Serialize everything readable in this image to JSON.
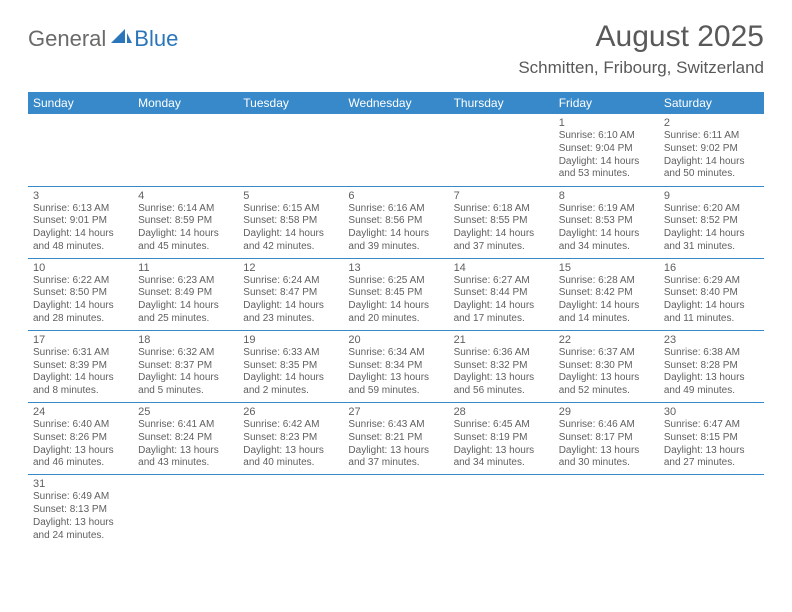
{
  "logo": {
    "part1": "General",
    "part2": "Blue"
  },
  "title": "August 2025",
  "location": "Schmitten, Fribourg, Switzerland",
  "colors": {
    "header_bg": "#3789ca",
    "header_fg": "#ffffff",
    "text": "#606060",
    "title_text": "#595959",
    "rule": "#3789ca",
    "logo_gray": "#6a6a6a",
    "logo_blue": "#2b76bb",
    "background": "#ffffff"
  },
  "typography": {
    "title_fontsize": 30,
    "location_fontsize": 17,
    "weekday_fontsize": 12,
    "daynum_fontsize": 11,
    "info_fontsize": 10
  },
  "weekdays": [
    "Sunday",
    "Monday",
    "Tuesday",
    "Wednesday",
    "Thursday",
    "Friday",
    "Saturday"
  ],
  "weeks": [
    [
      null,
      null,
      null,
      null,
      null,
      {
        "n": "1",
        "sunrise": "6:10 AM",
        "sunset": "9:04 PM",
        "day_h": "14",
        "day_m": "53"
      },
      {
        "n": "2",
        "sunrise": "6:11 AM",
        "sunset": "9:02 PM",
        "day_h": "14",
        "day_m": "50"
      }
    ],
    [
      {
        "n": "3",
        "sunrise": "6:13 AM",
        "sunset": "9:01 PM",
        "day_h": "14",
        "day_m": "48"
      },
      {
        "n": "4",
        "sunrise": "6:14 AM",
        "sunset": "8:59 PM",
        "day_h": "14",
        "day_m": "45"
      },
      {
        "n": "5",
        "sunrise": "6:15 AM",
        "sunset": "8:58 PM",
        "day_h": "14",
        "day_m": "42"
      },
      {
        "n": "6",
        "sunrise": "6:16 AM",
        "sunset": "8:56 PM",
        "day_h": "14",
        "day_m": "39"
      },
      {
        "n": "7",
        "sunrise": "6:18 AM",
        "sunset": "8:55 PM",
        "day_h": "14",
        "day_m": "37"
      },
      {
        "n": "8",
        "sunrise": "6:19 AM",
        "sunset": "8:53 PM",
        "day_h": "14",
        "day_m": "34"
      },
      {
        "n": "9",
        "sunrise": "6:20 AM",
        "sunset": "8:52 PM",
        "day_h": "14",
        "day_m": "31"
      }
    ],
    [
      {
        "n": "10",
        "sunrise": "6:22 AM",
        "sunset": "8:50 PM",
        "day_h": "14",
        "day_m": "28"
      },
      {
        "n": "11",
        "sunrise": "6:23 AM",
        "sunset": "8:49 PM",
        "day_h": "14",
        "day_m": "25"
      },
      {
        "n": "12",
        "sunrise": "6:24 AM",
        "sunset": "8:47 PM",
        "day_h": "14",
        "day_m": "23"
      },
      {
        "n": "13",
        "sunrise": "6:25 AM",
        "sunset": "8:45 PM",
        "day_h": "14",
        "day_m": "20"
      },
      {
        "n": "14",
        "sunrise": "6:27 AM",
        "sunset": "8:44 PM",
        "day_h": "14",
        "day_m": "17"
      },
      {
        "n": "15",
        "sunrise": "6:28 AM",
        "sunset": "8:42 PM",
        "day_h": "14",
        "day_m": "14"
      },
      {
        "n": "16",
        "sunrise": "6:29 AM",
        "sunset": "8:40 PM",
        "day_h": "14",
        "day_m": "11"
      }
    ],
    [
      {
        "n": "17",
        "sunrise": "6:31 AM",
        "sunset": "8:39 PM",
        "day_h": "14",
        "day_m": "8"
      },
      {
        "n": "18",
        "sunrise": "6:32 AM",
        "sunset": "8:37 PM",
        "day_h": "14",
        "day_m": "5"
      },
      {
        "n": "19",
        "sunrise": "6:33 AM",
        "sunset": "8:35 PM",
        "day_h": "14",
        "day_m": "2"
      },
      {
        "n": "20",
        "sunrise": "6:34 AM",
        "sunset": "8:34 PM",
        "day_h": "13",
        "day_m": "59"
      },
      {
        "n": "21",
        "sunrise": "6:36 AM",
        "sunset": "8:32 PM",
        "day_h": "13",
        "day_m": "56"
      },
      {
        "n": "22",
        "sunrise": "6:37 AM",
        "sunset": "8:30 PM",
        "day_h": "13",
        "day_m": "52"
      },
      {
        "n": "23",
        "sunrise": "6:38 AM",
        "sunset": "8:28 PM",
        "day_h": "13",
        "day_m": "49"
      }
    ],
    [
      {
        "n": "24",
        "sunrise": "6:40 AM",
        "sunset": "8:26 PM",
        "day_h": "13",
        "day_m": "46"
      },
      {
        "n": "25",
        "sunrise": "6:41 AM",
        "sunset": "8:24 PM",
        "day_h": "13",
        "day_m": "43"
      },
      {
        "n": "26",
        "sunrise": "6:42 AM",
        "sunset": "8:23 PM",
        "day_h": "13",
        "day_m": "40"
      },
      {
        "n": "27",
        "sunrise": "6:43 AM",
        "sunset": "8:21 PM",
        "day_h": "13",
        "day_m": "37"
      },
      {
        "n": "28",
        "sunrise": "6:45 AM",
        "sunset": "8:19 PM",
        "day_h": "13",
        "day_m": "34"
      },
      {
        "n": "29",
        "sunrise": "6:46 AM",
        "sunset": "8:17 PM",
        "day_h": "13",
        "day_m": "30"
      },
      {
        "n": "30",
        "sunrise": "6:47 AM",
        "sunset": "8:15 PM",
        "day_h": "13",
        "day_m": "27"
      }
    ],
    [
      {
        "n": "31",
        "sunrise": "6:49 AM",
        "sunset": "8:13 PM",
        "day_h": "13",
        "day_m": "24"
      },
      null,
      null,
      null,
      null,
      null,
      null
    ]
  ]
}
